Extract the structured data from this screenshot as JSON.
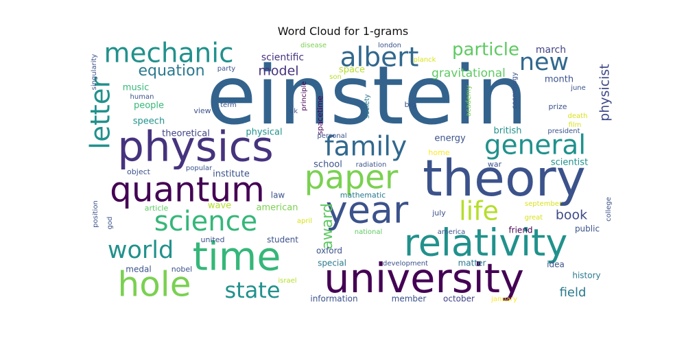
{
  "chart_data": {
    "type": "wordcloud",
    "title": "Word Cloud for 1-grams",
    "colormap": "viridis",
    "background": "#ffffff",
    "words": [
      {
        "text": "einstein",
        "weight": 1.0,
        "color": "#33638d",
        "vertical": false
      },
      {
        "text": "theory",
        "weight": 0.62,
        "color": "#3b528b",
        "vertical": false
      },
      {
        "text": "physics",
        "weight": 0.52,
        "color": "#46337e",
        "vertical": false
      },
      {
        "text": "university",
        "weight": 0.5,
        "color": "#440154",
        "vertical": false
      },
      {
        "text": "time",
        "weight": 0.48,
        "color": "#35b779",
        "vertical": false
      },
      {
        "text": "relativity",
        "weight": 0.46,
        "color": "#21918c",
        "vertical": false
      },
      {
        "text": "year",
        "weight": 0.46,
        "color": "#3b528b",
        "vertical": false
      },
      {
        "text": "quantum",
        "weight": 0.42,
        "color": "#440154",
        "vertical": false
      },
      {
        "text": "hole",
        "weight": 0.42,
        "color": "#7ad151",
        "vertical": false
      },
      {
        "text": "paper",
        "weight": 0.4,
        "color": "#7ad151",
        "vertical": false
      },
      {
        "text": "science",
        "weight": 0.34,
        "color": "#35b779",
        "vertical": false
      },
      {
        "text": "mechanic",
        "weight": 0.33,
        "color": "#21918c",
        "vertical": false
      },
      {
        "text": "albert",
        "weight": 0.33,
        "color": "#31688e",
        "vertical": false
      },
      {
        "text": "family",
        "weight": 0.33,
        "color": "#31688e",
        "vertical": false
      },
      {
        "text": "general",
        "weight": 0.33,
        "color": "#21918c",
        "vertical": false
      },
      {
        "text": "letter",
        "weight": 0.33,
        "color": "#21918c",
        "vertical": true
      },
      {
        "text": "life",
        "weight": 0.32,
        "color": "#b5de2b",
        "vertical": false
      },
      {
        "text": "new",
        "weight": 0.3,
        "color": "#31688e",
        "vertical": false
      },
      {
        "text": "world",
        "weight": 0.3,
        "color": "#21918c",
        "vertical": false
      },
      {
        "text": "state",
        "weight": 0.27,
        "color": "#21918c",
        "vertical": false
      },
      {
        "text": "particle",
        "weight": 0.22,
        "color": "#5ec962",
        "vertical": false
      },
      {
        "text": "equation",
        "weight": 0.19,
        "color": "#2a788e",
        "vertical": false
      },
      {
        "text": "award",
        "weight": 0.19,
        "color": "#5ec962",
        "vertical": true
      },
      {
        "text": "model",
        "weight": 0.16,
        "color": "#46337e",
        "vertical": false
      },
      {
        "text": "book",
        "weight": 0.16,
        "color": "#3e4989",
        "vertical": false
      },
      {
        "text": "physicist",
        "weight": 0.16,
        "color": "#3e4989",
        "vertical": true
      },
      {
        "text": "field",
        "weight": 0.15,
        "color": "#2a788e",
        "vertical": false
      },
      {
        "text": "gravitational",
        "weight": 0.14,
        "color": "#5ec962",
        "vertical": false
      },
      {
        "text": "scientific",
        "weight": 0.12,
        "color": "#46337e",
        "vertical": false
      },
      {
        "text": "march",
        "weight": 0.12,
        "color": "#414487",
        "vertical": false
      },
      {
        "text": "month",
        "weight": 0.11,
        "color": "#3b528b",
        "vertical": false
      },
      {
        "text": "energy",
        "weight": 0.11,
        "color": "#3b528b",
        "vertical": false
      },
      {
        "text": "british",
        "weight": 0.11,
        "color": "#21918c",
        "vertical": false
      },
      {
        "text": "music",
        "weight": 0.11,
        "color": "#35b779",
        "vertical": false
      },
      {
        "text": "people",
        "weight": 0.11,
        "color": "#35b779",
        "vertical": false
      },
      {
        "text": "speech",
        "weight": 0.11,
        "color": "#21918c",
        "vertical": false
      },
      {
        "text": "theoretical",
        "weight": 0.11,
        "color": "#414487",
        "vertical": false
      },
      {
        "text": "physical",
        "weight": 0.11,
        "color": "#21918c",
        "vertical": false
      },
      {
        "text": "institute",
        "weight": 0.11,
        "color": "#3b528b",
        "vertical": false
      },
      {
        "text": "scientist",
        "weight": 0.11,
        "color": "#21918c",
        "vertical": false
      },
      {
        "text": "school",
        "weight": 0.11,
        "color": "#3b528b",
        "vertical": false
      },
      {
        "text": "space",
        "weight": 0.11,
        "color": "#b5de2b",
        "vertical": false
      },
      {
        "text": "wave",
        "weight": 0.11,
        "color": "#b5de2b",
        "vertical": false
      },
      {
        "text": "american",
        "weight": 0.11,
        "color": "#7ad151",
        "vertical": false
      },
      {
        "text": "law",
        "weight": 0.1,
        "color": "#3b528b",
        "vertical": false
      },
      {
        "text": "history",
        "weight": 0.1,
        "color": "#2a788e",
        "vertical": false
      },
      {
        "text": "special",
        "weight": 0.1,
        "color": "#2a788e",
        "vertical": false
      },
      {
        "text": "oxford",
        "weight": 0.1,
        "color": "#3b528b",
        "vertical": false
      },
      {
        "text": "student",
        "weight": 0.1,
        "color": "#3b528b",
        "vertical": false
      },
      {
        "text": "matter",
        "weight": 0.1,
        "color": "#2a788e",
        "vertical": false
      },
      {
        "text": "idea",
        "weight": 0.1,
        "color": "#3b528b",
        "vertical": false
      },
      {
        "text": "public",
        "weight": 0.1,
        "color": "#3b528b",
        "vertical": false
      },
      {
        "text": "medal",
        "weight": 0.1,
        "color": "#3b528b",
        "vertical": false
      },
      {
        "text": "information",
        "weight": 0.1,
        "color": "#3b528b",
        "vertical": false
      },
      {
        "text": "member",
        "weight": 0.1,
        "color": "#3b528b",
        "vertical": false
      },
      {
        "text": "october",
        "weight": 0.1,
        "color": "#414487",
        "vertical": false
      },
      {
        "text": "friend",
        "weight": 0.1,
        "color": "#440154",
        "vertical": false
      },
      {
        "text": "big",
        "weight": 0.09,
        "color": "#3b528b",
        "vertical": false
      },
      {
        "text": "view",
        "weight": 0.09,
        "color": "#3b528b",
        "vertical": false
      },
      {
        "text": "object",
        "weight": 0.09,
        "color": "#3b528b",
        "vertical": false
      },
      {
        "text": "article",
        "weight": 0.09,
        "color": "#5ec962",
        "vertical": false
      },
      {
        "text": "united",
        "weight": 0.09,
        "color": "#3b528b",
        "vertical": false
      },
      {
        "text": "nobel",
        "weight": 0.09,
        "color": "#3b528b",
        "vertical": false
      },
      {
        "text": "mathematic",
        "weight": 0.09,
        "color": "#2a788e",
        "vertical": false
      },
      {
        "text": "july",
        "weight": 0.09,
        "color": "#3b528b",
        "vertical": false
      },
      {
        "text": "war",
        "weight": 0.09,
        "color": "#3b528b",
        "vertical": false
      },
      {
        "text": "home",
        "weight": 0.09,
        "color": "#fde725",
        "vertical": false
      },
      {
        "text": "prize",
        "weight": 0.09,
        "color": "#3b528b",
        "vertical": false
      },
      {
        "text": "radiation",
        "weight": 0.08,
        "color": "#3b528b",
        "vertical": false
      },
      {
        "text": "popular",
        "weight": 0.08,
        "color": "#3b528b",
        "vertical": false
      },
      {
        "text": "april",
        "weight": 0.08,
        "color": "#d8e219",
        "vertical": false
      },
      {
        "text": "human",
        "weight": 0.07,
        "color": "#3b528b",
        "vertical": false
      },
      {
        "text": "term",
        "weight": 0.07,
        "color": "#3b528b",
        "vertical": false
      },
      {
        "text": "uk",
        "weight": 0.07,
        "color": "#3b528b",
        "vertical": false
      },
      {
        "text": "personal",
        "weight": 0.07,
        "color": "#3b528b",
        "vertical": false
      },
      {
        "text": "september",
        "weight": 0.07,
        "color": "#d8e219",
        "vertical": false
      },
      {
        "text": "president",
        "weight": 0.07,
        "color": "#3b528b",
        "vertical": false
      },
      {
        "text": "great",
        "weight": 0.07,
        "color": "#d8e219",
        "vertical": false
      },
      {
        "text": "america",
        "weight": 0.07,
        "color": "#3b528b",
        "vertical": false
      },
      {
        "text": "national",
        "weight": 0.07,
        "color": "#5ec962",
        "vertical": false
      },
      {
        "text": "development",
        "weight": 0.07,
        "color": "#3b528b",
        "vertical": false
      },
      {
        "text": "israel",
        "weight": 0.07,
        "color": "#b5de2b",
        "vertical": false
      },
      {
        "text": "january",
        "weight": 0.07,
        "color": "#fde725",
        "vertical": false
      },
      {
        "text": "party",
        "weight": 0.07,
        "color": "#3b528b",
        "vertical": false
      },
      {
        "text": "son",
        "weight": 0.07,
        "color": "#b5de2b",
        "vertical": false
      },
      {
        "text": "disease",
        "weight": 0.07,
        "color": "#7ad151",
        "vertical": false
      },
      {
        "text": "london",
        "weight": 0.07,
        "color": "#3b528b",
        "vertical": false
      },
      {
        "text": "planck",
        "weight": 0.07,
        "color": "#d8e219",
        "vertical": false
      },
      {
        "text": "june",
        "weight": 0.07,
        "color": "#3b528b",
        "vertical": false
      },
      {
        "text": "death",
        "weight": 0.07,
        "color": "#d8e219",
        "vertical": false
      },
      {
        "text": "film",
        "weight": 0.07,
        "color": "#d8e219",
        "vertical": false
      },
      {
        "text": "society",
        "weight": 0.08,
        "color": "#2a788e",
        "vertical": true
      },
      {
        "text": "spacetime",
        "weight": 0.09,
        "color": "#440154",
        "vertical": true
      },
      {
        "text": "principle",
        "weight": 0.08,
        "color": "#440154",
        "vertical": true
      },
      {
        "text": "academy",
        "weight": 0.08,
        "color": "#7ad151",
        "vertical": true
      },
      {
        "text": "cosmology",
        "weight": 0.08,
        "color": "#3b528b",
        "vertical": true
      },
      {
        "text": "singularity",
        "weight": 0.07,
        "color": "#3b528b",
        "vertical": true
      },
      {
        "text": "position",
        "weight": 0.08,
        "color": "#3b528b",
        "vertical": true
      },
      {
        "text": "god",
        "weight": 0.07,
        "color": "#3b528b",
        "vertical": true
      },
      {
        "text": "college",
        "weight": 0.08,
        "color": "#3b528b",
        "vertical": true
      }
    ]
  }
}
